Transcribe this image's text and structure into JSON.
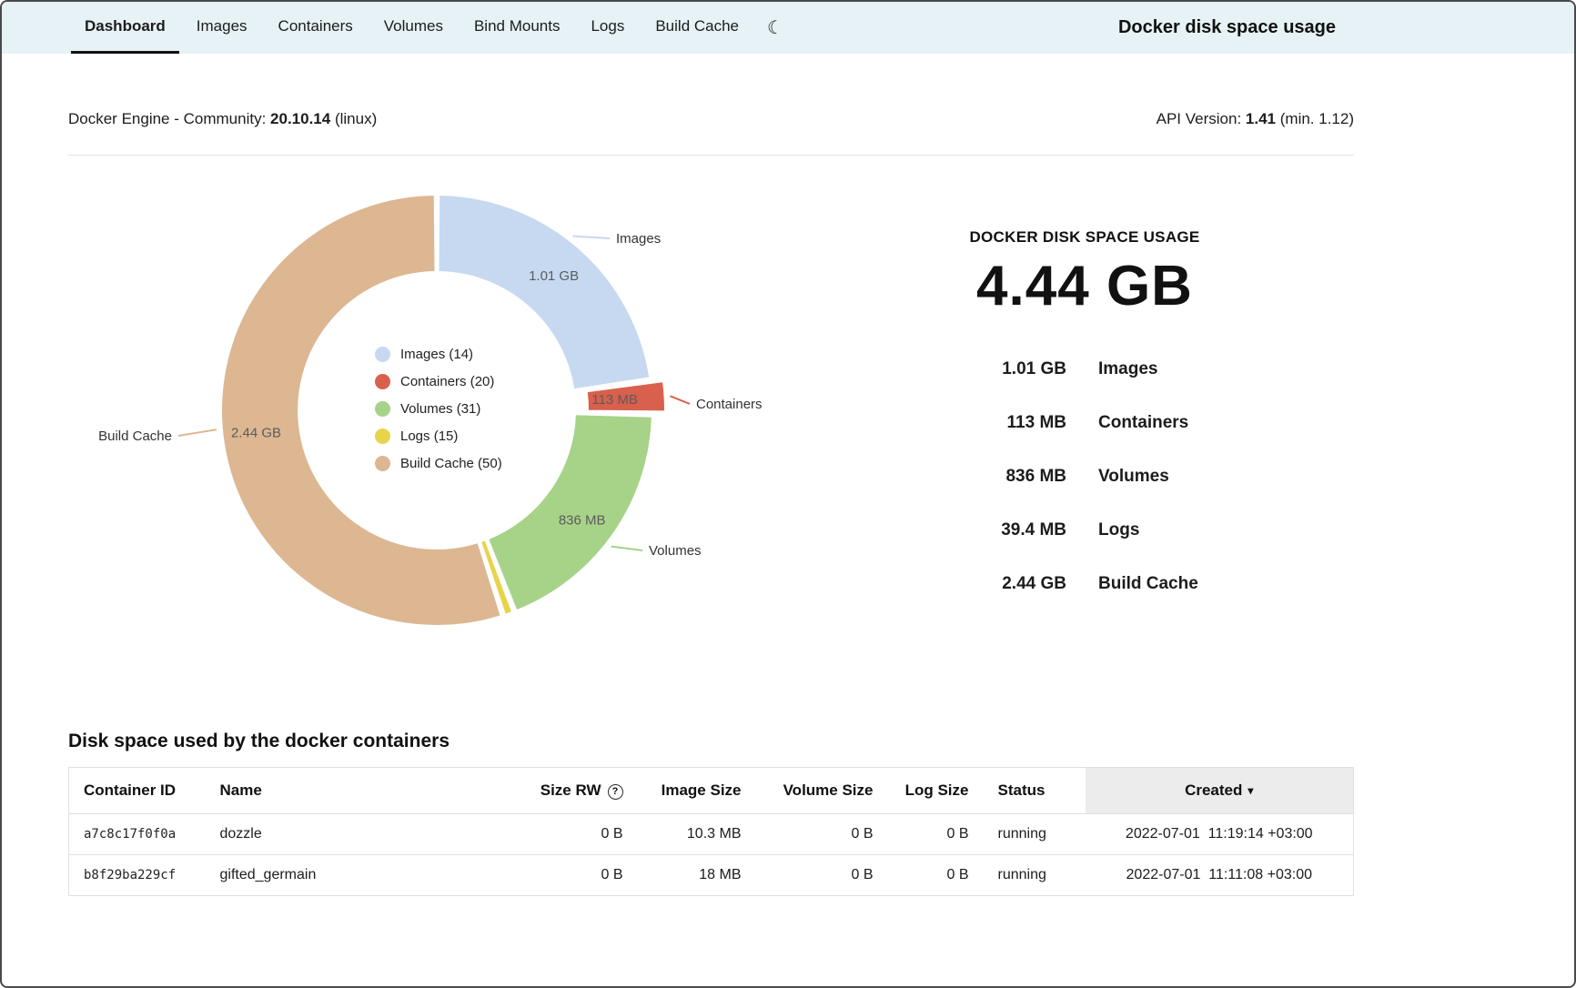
{
  "page_title": "Docker disk space usage",
  "nav": {
    "tabs": [
      {
        "label": "Dashboard",
        "active": true
      },
      {
        "label": "Images",
        "active": false
      },
      {
        "label": "Containers",
        "active": false
      },
      {
        "label": "Volumes",
        "active": false
      },
      {
        "label": "Bind Mounts",
        "active": false
      },
      {
        "label": "Logs",
        "active": false
      },
      {
        "label": "Build Cache",
        "active": false
      }
    ]
  },
  "icons": {
    "moon": "☾",
    "help": "?",
    "sort_desc": "▾"
  },
  "engine": {
    "label": "Docker Engine - Community:",
    "version": "20.10.14",
    "os": "(linux)",
    "api_label": "API Version:",
    "api_version": "1.41",
    "api_min": "(min. 1.12)"
  },
  "chart_data": {
    "type": "pie",
    "title": "Docker disk space usage",
    "total_label": "4.44 GB",
    "donut": true,
    "legend_position": "center",
    "segments": [
      {
        "name": "Images",
        "count": 14,
        "value_mb": 1010,
        "label": "1.01 GB",
        "color": "#c6d9f1",
        "exploded": false
      },
      {
        "name": "Containers",
        "count": 20,
        "value_mb": 113,
        "label": "113 MB",
        "color": "#d9604c",
        "exploded": true
      },
      {
        "name": "Volumes",
        "count": 31,
        "value_mb": 836,
        "label": "836 MB",
        "color": "#a6d388",
        "exploded": false
      },
      {
        "name": "Logs",
        "count": 15,
        "value_mb": 39.4,
        "label": "39.4 MB",
        "color": "#e8d44a",
        "exploded": false
      },
      {
        "name": "Build Cache",
        "count": 50,
        "value_mb": 2440,
        "label": "2.44 GB",
        "color": "#dcb791",
        "exploded": false
      }
    ],
    "legend": [
      "Images (14)",
      "Containers (20)",
      "Volumes (31)",
      "Logs (15)",
      "Build Cache (50)"
    ]
  },
  "summary": {
    "heading": "DOCKER DISK SPACE USAGE",
    "total": "4.44 GB",
    "rows": [
      {
        "value": "1.01 GB",
        "label": "Images"
      },
      {
        "value": "113 MB",
        "label": "Containers"
      },
      {
        "value": "836 MB",
        "label": "Volumes"
      },
      {
        "value": "39.4 MB",
        "label": "Logs"
      },
      {
        "value": "2.44 GB",
        "label": "Build Cache"
      }
    ]
  },
  "containers_section": {
    "heading": "Disk space used by the docker containers",
    "columns": [
      "Container ID",
      "Name",
      "Size RW",
      "Image Size",
      "Volume Size",
      "Log Size",
      "Status",
      "Created"
    ],
    "rows": [
      {
        "id": "a7c8c17f0f0a",
        "name": "dozzle",
        "size_rw": "0 B",
        "image_size": "10.3 MB",
        "volume_size": "0 B",
        "log_size": "0 B",
        "status": "running",
        "created": "2022-07-01  11:19:14 +03:00"
      },
      {
        "id": "b8f29ba229cf",
        "name": "gifted_germain",
        "size_rw": "0 B",
        "image_size": "18 MB",
        "volume_size": "0 B",
        "log_size": "0 B",
        "status": "running",
        "created": "2022-07-01  11:11:08 +03:00"
      }
    ]
  }
}
